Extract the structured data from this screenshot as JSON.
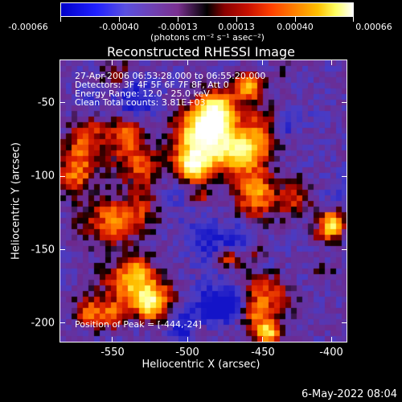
{
  "colorbar": {
    "tick_labels": [
      "-0.00066",
      "-0.00040",
      "-0.00013",
      "0.00013",
      "0.00040",
      "0.00066"
    ],
    "units_label": "(photons cm⁻² s⁻¹ asec⁻²)"
  },
  "title": "Reconstructed RHESSI Image",
  "info": {
    "time_range": "27-Apr-2006 06:53:28.000 to 06:55:20.000",
    "detectors": "Detectors: 3F 4F 5F 6F 7F 8F, Att 0",
    "energy": "Energy Range: 12.0 - 25.0 keV",
    "algorithm": "Clean     Total counts: 3.81E+03",
    "peak": "Position of Peak = [-444,-24]"
  },
  "axes": {
    "xlabel": "Heliocentric X (arcsec)",
    "ylabel": "Heliocentric Y (arcsec)",
    "xticks": [
      "-550",
      "-500",
      "-450",
      "-400"
    ],
    "yticks": [
      "-50",
      "-100",
      "-150",
      "-200"
    ]
  },
  "footer": {
    "timestamp": "6-May-2022 08:04"
  }
}
